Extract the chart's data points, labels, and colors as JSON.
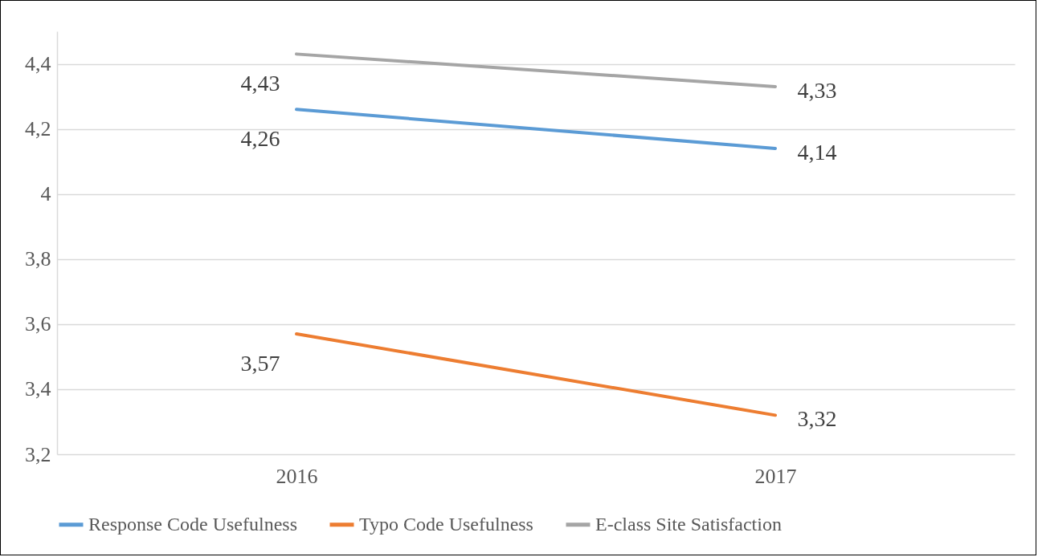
{
  "chart_data": {
    "type": "line",
    "categories": [
      "2016",
      "2017"
    ],
    "series": [
      {
        "name": "Response Code Usefulness",
        "color": "#5b9bd5",
        "values": [
          4.26,
          4.14
        ],
        "value_labels": [
          "4,26",
          "4,14"
        ]
      },
      {
        "name": "Typo Code Usefulness",
        "color": "#ed7d31",
        "values": [
          3.57,
          3.32
        ],
        "value_labels": [
          "3,57",
          "3,32"
        ]
      },
      {
        "name": "E-class Site Satisfaction",
        "color": "#a5a5a5",
        "values": [
          4.43,
          4.33
        ],
        "value_labels": [
          "4,43",
          "4,33"
        ]
      }
    ],
    "ylim": [
      3.2,
      4.5
    ],
    "yticks": [
      {
        "value": 3.2,
        "label": "3,2"
      },
      {
        "value": 3.4,
        "label": "3,4"
      },
      {
        "value": 3.6,
        "label": "3,6"
      },
      {
        "value": 3.8,
        "label": "3,8"
      },
      {
        "value": 4,
        "label": "4"
      },
      {
        "value": 4.2,
        "label": "4,2"
      },
      {
        "value": 4.4,
        "label": "4,4"
      }
    ],
    "grid": "y",
    "legend": "bottom"
  }
}
